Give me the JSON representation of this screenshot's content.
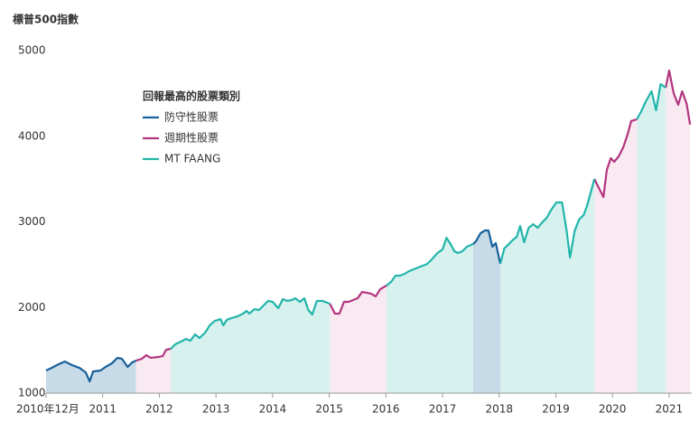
{
  "chart_data": {
    "type": "line",
    "title": "標普500指數",
    "legend_title": "回報最高的股票類別",
    "x": [
      2010.0,
      2010.1,
      2010.19,
      2010.33,
      2010.46,
      2010.59,
      2010.7,
      2010.77,
      2010.83,
      2010.96,
      2011.05,
      2011.16,
      2011.26,
      2011.34,
      2011.44,
      2011.52,
      2011.59,
      2011.69,
      2011.77,
      2011.85,
      2011.98,
      2012.06,
      2012.12,
      2012.2,
      2012.28,
      2012.38,
      2012.47,
      2012.55,
      2012.63,
      2012.71,
      2012.81,
      2012.89,
      2012.98,
      2013.08,
      2013.13,
      2013.19,
      2013.27,
      2013.38,
      2013.48,
      2013.54,
      2013.59,
      2013.68,
      2013.76,
      2013.84,
      2013.92,
      2014.0,
      2014.1,
      2014.18,
      2014.26,
      2014.34,
      2014.4,
      2014.48,
      2014.56,
      2014.63,
      2014.7,
      2014.78,
      2014.88,
      2015.01,
      2015.1,
      2015.18,
      2015.26,
      2015.34,
      2015.42,
      2015.5,
      2015.58,
      2015.66,
      2015.74,
      2015.82,
      2015.9,
      2016.01,
      2016.09,
      2016.17,
      2016.25,
      2016.33,
      2016.41,
      2016.49,
      2016.57,
      2016.65,
      2016.73,
      2016.81,
      2016.91,
      2017.0,
      2017.07,
      2017.15,
      2017.21,
      2017.27,
      2017.35,
      2017.43,
      2017.54,
      2017.59,
      2017.67,
      2017.75,
      2017.81,
      2017.88,
      2017.94,
      2018.02,
      2018.09,
      2018.17,
      2018.25,
      2018.31,
      2018.37,
      2018.44,
      2018.52,
      2018.6,
      2018.68,
      2018.76,
      2018.84,
      2018.92,
      2019.01,
      2019.11,
      2019.19,
      2019.25,
      2019.33,
      2019.41,
      2019.49,
      2019.55,
      2019.62,
      2019.68,
      2019.76,
      2019.84,
      2019.9,
      2019.97,
      2020.03,
      2020.11,
      2020.19,
      2020.27,
      2020.33,
      2020.43,
      2020.51,
      2020.59,
      2020.69,
      2020.77,
      2020.85,
      2020.94,
      2021.0,
      2021.08,
      2021.16,
      2021.23,
      2021.31,
      2021.37
    ],
    "values": [
      1264,
      1295,
      1327,
      1370,
      1327,
      1295,
      1243,
      1137,
      1253,
      1264,
      1306,
      1348,
      1412,
      1401,
      1306,
      1359,
      1380,
      1401,
      1443,
      1412,
      1422,
      1433,
      1507,
      1517,
      1570,
      1601,
      1633,
      1612,
      1686,
      1644,
      1707,
      1792,
      1844,
      1865,
      1792,
      1855,
      1876,
      1897,
      1929,
      1960,
      1929,
      1981,
      1971,
      2024,
      2077,
      2066,
      1992,
      2098,
      2077,
      2087,
      2108,
      2066,
      2108,
      1971,
      1918,
      2077,
      2077,
      2045,
      1929,
      1929,
      2066,
      2066,
      2087,
      2108,
      2182,
      2172,
      2161,
      2130,
      2214,
      2256,
      2298,
      2372,
      2372,
      2393,
      2425,
      2446,
      2467,
      2488,
      2509,
      2562,
      2636,
      2678,
      2815,
      2731,
      2657,
      2636,
      2657,
      2710,
      2741,
      2773,
      2868,
      2900,
      2900,
      2710,
      2752,
      2509,
      2689,
      2741,
      2794,
      2826,
      2952,
      2762,
      2931,
      2973,
      2931,
      2994,
      3048,
      3143,
      3227,
      3227,
      2900,
      2583,
      2889,
      3027,
      3079,
      3185,
      3353,
      3501,
      3396,
      3290,
      3607,
      3744,
      3702,
      3765,
      3871,
      4029,
      4177,
      4198,
      4293,
      4409,
      4525,
      4303,
      4609,
      4567,
      4768,
      4504,
      4367,
      4525,
      4378,
      4135
    ],
    "series": [
      {
        "name": "防守性股票",
        "color": "#17609a",
        "area_color": "#c6dae8",
        "periods": [
          [
            2010.0,
            2011.59
          ],
          [
            2017.54,
            2018.02
          ]
        ]
      },
      {
        "name": "週期性股票",
        "color": "#b3357e",
        "area_color": "#f9e9f1",
        "periods": [
          [
            2011.59,
            2012.2
          ],
          [
            2015.01,
            2016.01
          ],
          [
            2019.68,
            2020.43
          ],
          [
            2020.94,
            2021.37
          ]
        ]
      },
      {
        "name": "MT FAANG",
        "color": "#22b5aa",
        "area_color": "#d7f1ef",
        "periods": [
          [
            2012.2,
            2015.01
          ],
          [
            2016.01,
            2017.54
          ],
          [
            2018.02,
            2019.68
          ],
          [
            2020.43,
            2020.94
          ]
        ]
      }
    ],
    "xlim": [
      2010,
      2021.4
    ],
    "xticks": [
      {
        "value": 2010,
        "label": "2010年12月"
      },
      2011,
      2012,
      2013,
      2014,
      2015,
      2016,
      2017,
      2018,
      2019,
      2020,
      2021
    ],
    "ylim": [
      1000,
      5000
    ],
    "yticks": [
      1000,
      2000,
      3000,
      4000,
      5000
    ]
  }
}
